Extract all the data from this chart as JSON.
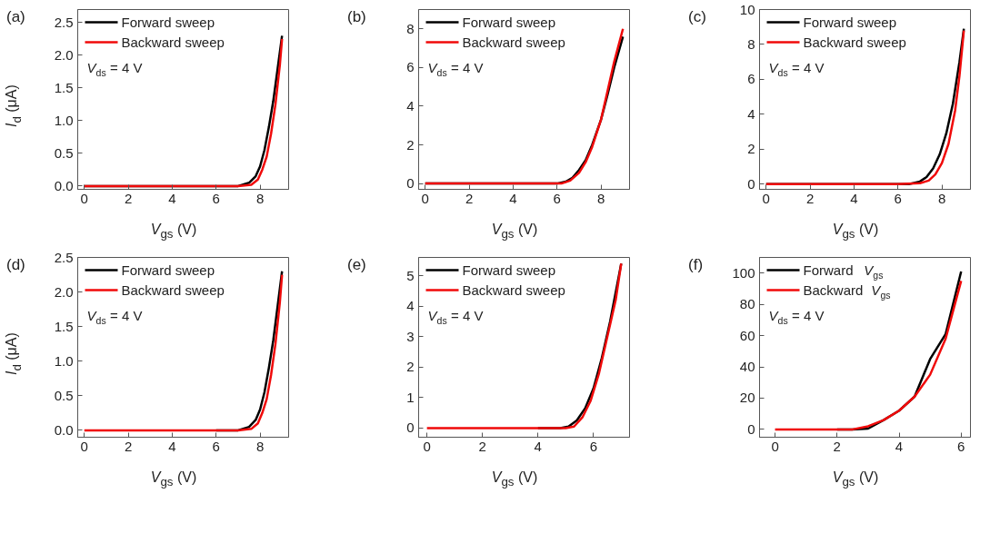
{
  "chart_data": [
    {
      "type": "line",
      "title": "(a)",
      "xlabel": "V$_{gs}$ (V)",
      "ylabel": "I$_{d}$ (μA)",
      "xlim": [
        -0.3,
        9.3
      ],
      "ylim": [
        -0.05,
        2.7
      ],
      "xticks": [
        0,
        2,
        4,
        6,
        8
      ],
      "yticks": [
        {
          "value": 0,
          "label": "0.0"
        },
        0.5,
        {
          "value": 1,
          "label": "1.0"
        },
        1.5,
        {
          "value": 2,
          "label": "2.0"
        },
        2.5
      ],
      "grid": false,
      "legend": "top left",
      "annotations": [
        "V$_{ds}$ = 4 V"
      ],
      "series": [
        {
          "name": "Forward sweep",
          "color": "#000000",
          "x": [
            0,
            2,
            4,
            6,
            7,
            7.5,
            7.8,
            8,
            8.2,
            8.4,
            8.6,
            8.8,
            9
          ],
          "values": [
            0,
            0,
            0,
            0,
            0,
            0.05,
            0.15,
            0.3,
            0.55,
            0.9,
            1.3,
            1.8,
            2.3
          ]
        },
        {
          "name": "Backward sweep",
          "color": "#f00a0a",
          "x": [
            0,
            2,
            4,
            6,
            7,
            7.6,
            7.9,
            8.1,
            8.3,
            8.5,
            8.7,
            8.9,
            9
          ],
          "values": [
            0,
            0,
            0,
            0,
            0,
            0.02,
            0.1,
            0.25,
            0.45,
            0.8,
            1.25,
            1.85,
            2.25
          ]
        }
      ]
    },
    {
      "type": "line",
      "title": "(b)",
      "xlabel": "V$_{gs}$ (V)",
      "xlim": [
        -0.3,
        9.3
      ],
      "ylim": [
        -0.3,
        9
      ],
      "xticks": [
        0,
        2,
        4,
        6,
        8
      ],
      "yticks": [
        0,
        2,
        4,
        6,
        8
      ],
      "grid": false,
      "legend": "top left",
      "annotations": [
        "V$_{ds}$ = 4 V"
      ],
      "series": [
        {
          "name": "Forward sweep",
          "color": "#000000",
          "x": [
            0,
            2,
            4,
            6,
            6.4,
            6.7,
            7,
            7.3,
            7.6,
            8,
            8.3,
            8.6,
            9
          ],
          "values": [
            0,
            0,
            0,
            0,
            0.1,
            0.3,
            0.7,
            1.2,
            2.0,
            3.3,
            4.6,
            6.0,
            7.6
          ]
        },
        {
          "name": "Backward sweep",
          "color": "#f00a0a",
          "x": [
            0,
            2,
            4,
            6,
            6.2,
            6.6,
            7,
            7.3,
            7.6,
            8,
            8.3,
            8.6,
            9
          ],
          "values": [
            0,
            0,
            0,
            0,
            0,
            0.15,
            0.55,
            1.1,
            1.9,
            3.3,
            4.8,
            6.3,
            8.0
          ]
        }
      ]
    },
    {
      "type": "line",
      "title": "(c)",
      "xlabel": "V$_{gs}$ (V)",
      "xlim": [
        -0.3,
        9.3
      ],
      "ylim": [
        -0.3,
        10
      ],
      "xticks": [
        0,
        2,
        4,
        6,
        8
      ],
      "yticks": [
        0,
        2,
        4,
        6,
        8,
        10
      ],
      "grid": false,
      "legend": "top left",
      "annotations": [
        "V$_{ds}$ = 4 V"
      ],
      "series": [
        {
          "name": "Forward sweep",
          "color": "#000000",
          "x": [
            0,
            2,
            4,
            6,
            6.5,
            7,
            7.3,
            7.6,
            7.9,
            8.2,
            8.5,
            8.8,
            9
          ],
          "values": [
            0,
            0,
            0,
            0,
            0,
            0.15,
            0.4,
            0.9,
            1.7,
            2.9,
            4.6,
            7.0,
            8.9
          ]
        },
        {
          "name": "Backward sweep",
          "color": "#f00a0a",
          "x": [
            0,
            2,
            4,
            6,
            7,
            7.4,
            7.7,
            8,
            8.3,
            8.6,
            8.8,
            9
          ],
          "values": [
            0,
            0,
            0,
            0,
            0.05,
            0.2,
            0.55,
            1.2,
            2.3,
            4.2,
            6.2,
            8.8
          ]
        }
      ]
    },
    {
      "type": "line",
      "title": "(d)",
      "xlabel": "V$_{gs}$ (V)",
      "ylabel": "I$_{d}$ (μA)",
      "xlim": [
        -0.3,
        9.3
      ],
      "ylim": [
        -0.1,
        2.5
      ],
      "xticks": [
        0,
        2,
        4,
        6,
        8
      ],
      "yticks": [
        {
          "value": 0,
          "label": "0.0"
        },
        0.5,
        {
          "value": 1,
          "label": "1.0"
        },
        1.5,
        {
          "value": 2,
          "label": "2.0"
        },
        2.5
      ],
      "grid": false,
      "legend": "top left",
      "annotations": [
        "V$_{ds}$ = 4 V"
      ],
      "series": [
        {
          "name": "Forward sweep",
          "color": "#000000",
          "x": [
            6,
            7,
            7.5,
            7.8,
            8,
            8.2,
            8.4,
            8.6,
            8.8,
            9
          ],
          "values": [
            0,
            0,
            0.05,
            0.15,
            0.3,
            0.55,
            0.9,
            1.3,
            1.8,
            2.3
          ]
        },
        {
          "name": "Backward sweep",
          "color": "#f00a0a",
          "x": [
            0,
            2,
            4,
            6,
            7,
            7.6,
            7.9,
            8.1,
            8.3,
            8.5,
            8.7,
            8.9,
            9
          ],
          "values": [
            0,
            0,
            0,
            0,
            0,
            0.02,
            0.1,
            0.25,
            0.45,
            0.8,
            1.25,
            1.85,
            2.25
          ]
        }
      ]
    },
    {
      "type": "line",
      "title": "(e)",
      "xlabel": "V$_{gs}$ (V)",
      "xlim": [
        -0.3,
        7.3
      ],
      "ylim": [
        -0.3,
        5.6
      ],
      "xticks": [
        0,
        2,
        4,
        6
      ],
      "yticks": [
        0,
        1,
        2,
        3,
        4,
        5
      ],
      "grid": false,
      "legend": "top left",
      "annotations": [
        "V$_{ds}$ = 4 V"
      ],
      "series": [
        {
          "name": "Forward sweep",
          "color": "#000000",
          "x": [
            4,
            4.8,
            5.1,
            5.4,
            5.7,
            6,
            6.3,
            6.6,
            7
          ],
          "values": [
            0,
            0,
            0.05,
            0.25,
            0.65,
            1.3,
            2.3,
            3.5,
            5.4
          ]
        },
        {
          "name": "Backward sweep",
          "color": "#f00a0a",
          "x": [
            0,
            2,
            4,
            5,
            5.3,
            5.6,
            5.9,
            6.2,
            6.5,
            6.8,
            7
          ],
          "values": [
            0,
            0,
            0,
            0,
            0.05,
            0.35,
            0.9,
            1.8,
            3.0,
            4.2,
            5.4
          ]
        }
      ]
    },
    {
      "type": "line",
      "title": "(f)",
      "xlabel": "V$_{gs}$ (V)",
      "xlim": [
        -0.5,
        6.3
      ],
      "ylim": [
        -5,
        110
      ],
      "xticks": [
        0,
        2,
        4,
        6
      ],
      "yticks": [
        0,
        20,
        40,
        60,
        80,
        100
      ],
      "grid": false,
      "legend": "top left",
      "annotations": [
        "V$_{ds}$ = 4 V"
      ],
      "series": [
        {
          "name": "Forward V$_{gs}$",
          "color": "#000000",
          "x": [
            2,
            2.5,
            3,
            3.5,
            4,
            4.5,
            5,
            5.5,
            6
          ],
          "values": [
            0,
            0,
            0.5,
            6,
            12,
            21,
            45,
            61,
            101
          ]
        },
        {
          "name": "Backward V$_{gs}$",
          "color": "#f00a0a",
          "x": [
            0,
            1,
            2,
            2.5,
            3,
            3.5,
            4,
            4.5,
            5,
            5.5,
            6
          ],
          "values": [
            0,
            0,
            0,
            0,
            2,
            6,
            12,
            21,
            35,
            58,
            95
          ]
        }
      ]
    }
  ]
}
